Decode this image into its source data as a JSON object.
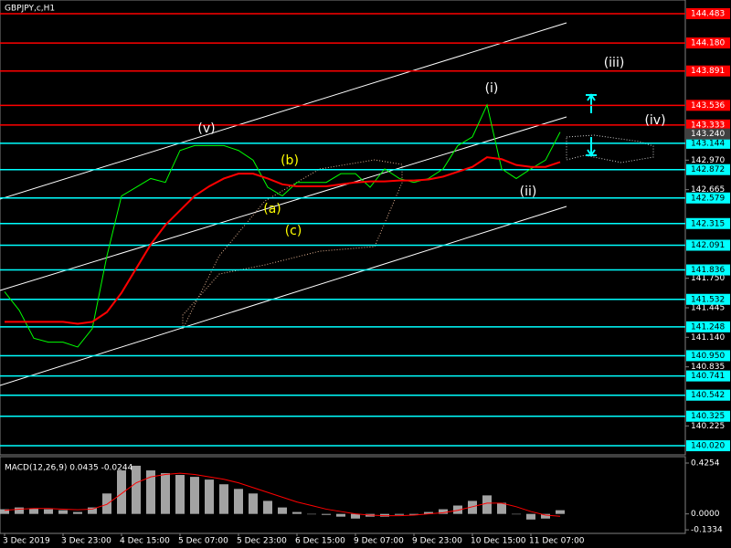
{
  "chart_data": [
    {
      "type": "line",
      "title": "GBPJPY,c,H1",
      "categories": [
        "3 Dec 2019",
        null,
        null,
        null,
        "3 Dec 23:00",
        null,
        null,
        null,
        "4 Dec 15:00",
        null,
        null,
        null,
        "5 Dec 07:00",
        null,
        null,
        null,
        "5 Dec 23:00",
        null,
        null,
        null,
        "6 Dec 15:00",
        null,
        null,
        null,
        "9 Dec 07:00",
        null,
        null,
        null,
        "9 Dec 23:00",
        null,
        null,
        null,
        "10 Dec 15:00",
        null,
        null,
        null,
        "11 Dec 07:00",
        null,
        null
      ],
      "series": [
        {
          "color": "#00ff00",
          "values": [
            141.61,
            141.42,
            141.13,
            141.09,
            141.09,
            141.04,
            141.23,
            141.98,
            142.6,
            142.69,
            142.78,
            142.74,
            143.07,
            143.12,
            143.12,
            143.12,
            143.07,
            142.97,
            142.69,
            142.6,
            142.74,
            142.74,
            142.74,
            142.83,
            142.83,
            142.69,
            142.88,
            142.78,
            142.74,
            142.78,
            142.88,
            143.12,
            143.21,
            143.54,
            142.88,
            142.78,
            142.88,
            142.97,
            143.26
          ]
        },
        {
          "color": "#ff0000",
          "values": [
            141.3,
            141.3,
            141.3,
            141.3,
            141.3,
            141.28,
            141.3,
            141.4,
            141.6,
            141.85,
            142.1,
            142.3,
            142.45,
            142.6,
            142.7,
            142.78,
            142.83,
            142.83,
            142.78,
            142.72,
            142.7,
            142.7,
            142.7,
            142.72,
            142.74,
            142.75,
            142.75,
            142.76,
            142.76,
            142.77,
            142.8,
            142.85,
            142.9,
            143.0,
            142.98,
            142.92,
            142.9,
            142.9,
            142.95
          ]
        }
      ],
      "ylim": [
        139.926,
        144.624
      ],
      "yticks": [
        {
          "value": 142.97,
          "label": "142.970"
        },
        142.665,
        {
          "value": 141.75,
          "label": "141.750"
        },
        141.445,
        {
          "value": 141.14,
          "label": "141.140"
        },
        140.835,
        140.225
      ],
      "levels": [
        {
          "value": 144.483,
          "label": "144.483",
          "color": "#ff0000"
        },
        {
          "value": 144.18,
          "label": "144.180",
          "color": "#ff0000"
        },
        {
          "value": 143.891,
          "label": "143.891",
          "color": "#ff0000"
        },
        {
          "value": 143.536,
          "label": "143.536",
          "color": "#ff0000"
        },
        {
          "value": 143.333,
          "label": "143.333",
          "color": "#ff0000"
        },
        {
          "value": 143.144,
          "label": "143.144",
          "color": "#00ffff"
        },
        {
          "value": 142.872,
          "label": "142.872",
          "color": "#00ffff"
        },
        {
          "value": 142.579,
          "label": "142.579",
          "color": "#00ffff"
        },
        {
          "value": 142.315,
          "label": "142.315",
          "color": "#00ffff"
        },
        {
          "value": 142.091,
          "label": "142.091",
          "color": "#00ffff"
        },
        {
          "value": 141.836,
          "label": "141.836",
          "color": "#00ffff"
        },
        {
          "value": 141.532,
          "label": "141.532",
          "color": "#00ffff"
        },
        {
          "value": 141.248,
          "label": "141.248",
          "color": "#00ffff"
        },
        {
          "value": 140.95,
          "label": "140.950",
          "color": "#00ffff"
        },
        {
          "value": 140.741,
          "label": "140.741",
          "color": "#00ffff"
        },
        {
          "value": 140.542,
          "label": "140.542",
          "color": "#00ffff"
        },
        {
          "value": 140.325,
          "label": "140.325",
          "color": "#00ffff"
        },
        {
          "value": 140.02,
          "label": "140.020",
          "color": "#00ffff"
        }
      ],
      "current_price": {
        "value": 143.24,
        "label": "143.240"
      },
      "annotations": [
        {
          "text": "(v)",
          "color": "#ffffff"
        },
        {
          "text": "(a)",
          "color": "#ffff00"
        },
        {
          "text": "(b)",
          "color": "#ffff00"
        },
        {
          "text": "(c)",
          "color": "#ffff00"
        },
        {
          "text": "(i)",
          "color": "#ffffff"
        },
        {
          "text": "(ii)",
          "color": "#ffffff"
        },
        {
          "text": "(iii)",
          "color": "#ffffff"
        },
        {
          "text": "(iv)",
          "color": "#ffffff"
        }
      ]
    },
    {
      "type": "bar",
      "title": "MACD(12,26,9) 0.0435 -0.0244",
      "series": [
        {
          "color": "#c0c0c0",
          "values": [
            0.039,
            0.054,
            0.047,
            0.039,
            0.031,
            0.016,
            0.054,
            0.171,
            0.364,
            0.403,
            0.364,
            0.341,
            0.326,
            0.31,
            0.287,
            0.248,
            0.209,
            0.171,
            0.109,
            0.054,
            0.016,
            0,
            -0.008,
            -0.023,
            -0.039,
            -0.023,
            -0.023,
            -0.008,
            -0.008,
            0.016,
            0.039,
            0.07,
            0.109,
            0.155,
            0.093,
            0,
            -0.047,
            -0.039,
            0.031
          ]
        },
        {
          "color": "#ff0000",
          "values": [
            0.03,
            0.04,
            0.045,
            0.045,
            0.04,
            0.035,
            0.04,
            0.08,
            0.17,
            0.26,
            0.31,
            0.33,
            0.34,
            0.33,
            0.31,
            0.29,
            0.26,
            0.22,
            0.18,
            0.14,
            0.1,
            0.07,
            0.04,
            0.02,
            0,
            -0.01,
            -0.015,
            -0.015,
            -0.01,
            0,
            0.01,
            0.03,
            0.06,
            0.09,
            0.09,
            0.06,
            0.02,
            -0.01,
            -0.02
          ]
        }
      ],
      "ylim": [
        -0.163,
        0.479
      ],
      "yticks": [
        0.4254,
        {
          "value": 0,
          "label": "0.0000"
        },
        -0.1334
      ]
    }
  ]
}
